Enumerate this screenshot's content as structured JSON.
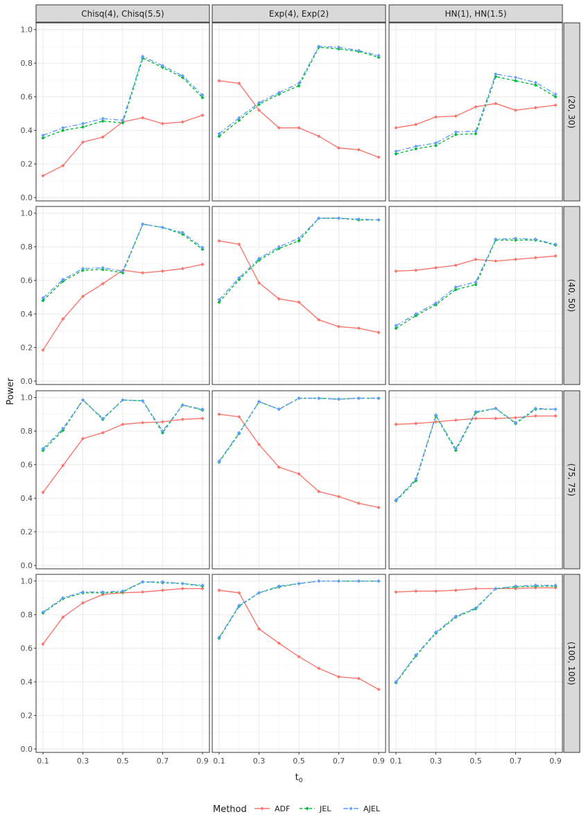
{
  "chart_data": {
    "type": "line",
    "ylabel": "Power",
    "xlabel_main": "t",
    "xlabel_sub": "0",
    "x": [
      0.1,
      0.2,
      0.3,
      0.4,
      0.5,
      0.6,
      0.7,
      0.8,
      0.9
    ],
    "x_ticks": [
      "0.1",
      "0.3",
      "0.5",
      "0.7",
      "0.9"
    ],
    "y_ticks": [
      "0.0",
      "0.2",
      "0.4",
      "0.6",
      "0.8",
      "1.0"
    ],
    "ylim": [
      -0.02,
      1.04
    ],
    "xlim": [
      0.1,
      0.9
    ],
    "grid": true,
    "legend": {
      "title": "Method",
      "position": "bottom",
      "entries": [
        "ADF",
        "JEL",
        "AJEL"
      ]
    },
    "colors": {
      "ADF": "#F8766D",
      "JEL": "#00BA38",
      "AJEL": "#619CFF"
    },
    "col_facets": [
      "Chisq(4), Chisq(5.5)",
      "Exp(4), Exp(2)",
      "HN(1), HN(1.5)"
    ],
    "row_facets": [
      "(20, 30)",
      "(40, 50)",
      "(75, 75)",
      "(100, 100)"
    ],
    "panels": [
      [
        {
          "ADF": [
            0.13,
            0.19,
            0.33,
            0.36,
            0.45,
            0.475,
            0.44,
            0.45,
            0.49
          ],
          "JEL": [
            0.355,
            0.4,
            0.42,
            0.455,
            0.445,
            0.83,
            0.775,
            0.715,
            0.595
          ],
          "AJEL": [
            0.37,
            0.415,
            0.44,
            0.47,
            0.46,
            0.84,
            0.785,
            0.725,
            0.61
          ]
        },
        {
          "ADF": [
            0.695,
            0.68,
            0.52,
            0.415,
            0.415,
            0.365,
            0.295,
            0.285,
            0.24
          ],
          "JEL": [
            0.365,
            0.46,
            0.555,
            0.615,
            0.665,
            0.895,
            0.885,
            0.87,
            0.835
          ],
          "AJEL": [
            0.38,
            0.475,
            0.565,
            0.625,
            0.68,
            0.9,
            0.895,
            0.875,
            0.845
          ]
        },
        {
          "ADF": [
            0.415,
            0.435,
            0.48,
            0.485,
            0.54,
            0.56,
            0.52,
            0.535,
            0.55
          ],
          "JEL": [
            0.26,
            0.29,
            0.31,
            0.375,
            0.38,
            0.72,
            0.695,
            0.67,
            0.6
          ],
          "AJEL": [
            0.275,
            0.305,
            0.325,
            0.39,
            0.395,
            0.735,
            0.715,
            0.685,
            0.615
          ]
        }
      ],
      [
        {
          "ADF": [
            0.185,
            0.37,
            0.505,
            0.58,
            0.66,
            0.645,
            0.655,
            0.67,
            0.695
          ],
          "JEL": [
            0.48,
            0.595,
            0.66,
            0.665,
            0.645,
            0.935,
            0.915,
            0.875,
            0.785
          ],
          "AJEL": [
            0.495,
            0.605,
            0.67,
            0.675,
            0.655,
            0.935,
            0.915,
            0.885,
            0.795
          ]
        },
        {
          "ADF": [
            0.835,
            0.815,
            0.585,
            0.49,
            0.47,
            0.365,
            0.325,
            0.315,
            0.29
          ],
          "JEL": [
            0.47,
            0.605,
            0.72,
            0.79,
            0.835,
            0.97,
            0.97,
            0.96,
            0.96
          ],
          "AJEL": [
            0.485,
            0.615,
            0.73,
            0.8,
            0.85,
            0.97,
            0.97,
            0.965,
            0.96
          ]
        },
        {
          "ADF": [
            0.655,
            0.66,
            0.675,
            0.69,
            0.725,
            0.715,
            0.725,
            0.735,
            0.745
          ],
          "JEL": [
            0.315,
            0.39,
            0.455,
            0.545,
            0.575,
            0.84,
            0.84,
            0.84,
            0.81
          ],
          "AJEL": [
            0.33,
            0.4,
            0.465,
            0.56,
            0.59,
            0.845,
            0.85,
            0.845,
            0.815
          ]
        }
      ],
      [
        {
          "ADF": [
            0.435,
            0.595,
            0.755,
            0.79,
            0.84,
            0.85,
            0.855,
            0.87,
            0.875
          ],
          "JEL": [
            0.685,
            0.805,
            0.985,
            0.87,
            0.985,
            0.98,
            0.79,
            0.955,
            0.925
          ],
          "AJEL": [
            0.695,
            0.815,
            0.985,
            0.875,
            0.985,
            0.98,
            0.8,
            0.955,
            0.93
          ]
        },
        {
          "ADF": [
            0.9,
            0.885,
            0.72,
            0.585,
            0.545,
            0.44,
            0.41,
            0.37,
            0.345
          ],
          "JEL": [
            0.615,
            0.785,
            0.975,
            0.93,
            0.995,
            0.995,
            0.99,
            0.995,
            0.995
          ],
          "AJEL": [
            0.62,
            0.79,
            0.975,
            0.93,
            0.995,
            0.995,
            0.99,
            0.995,
            0.995
          ]
        },
        {
          "ADF": [
            0.84,
            0.845,
            0.855,
            0.865,
            0.875,
            0.875,
            0.88,
            0.89,
            0.89
          ],
          "JEL": [
            0.385,
            0.505,
            0.89,
            0.685,
            0.91,
            0.935,
            0.845,
            0.93,
            0.93
          ],
          "AJEL": [
            0.39,
            0.515,
            0.895,
            0.695,
            0.915,
            0.935,
            0.85,
            0.935,
            0.93
          ]
        }
      ],
      [
        {
          "ADF": [
            0.625,
            0.785,
            0.87,
            0.92,
            0.93,
            0.935,
            0.945,
            0.955,
            0.955
          ],
          "JEL": [
            0.81,
            0.895,
            0.93,
            0.93,
            0.935,
            0.995,
            0.99,
            0.985,
            0.97
          ],
          "AJEL": [
            0.815,
            0.9,
            0.935,
            0.935,
            0.94,
            0.995,
            0.995,
            0.985,
            0.975
          ]
        },
        {
          "ADF": [
            0.945,
            0.93,
            0.715,
            0.63,
            0.55,
            0.48,
            0.43,
            0.42,
            0.355
          ],
          "JEL": [
            0.66,
            0.85,
            0.93,
            0.965,
            0.985,
            1.0,
            1.0,
            1.0,
            1.0
          ],
          "AJEL": [
            0.665,
            0.855,
            0.93,
            0.97,
            0.985,
            1.0,
            1.0,
            1.0,
            1.0
          ]
        },
        {
          "ADF": [
            0.935,
            0.94,
            0.94,
            0.945,
            0.955,
            0.955,
            0.955,
            0.96,
            0.96
          ],
          "JEL": [
            0.395,
            0.555,
            0.69,
            0.785,
            0.835,
            0.955,
            0.965,
            0.97,
            0.97
          ],
          "AJEL": [
            0.4,
            0.56,
            0.695,
            0.79,
            0.84,
            0.955,
            0.97,
            0.975,
            0.975
          ]
        }
      ]
    ]
  }
}
